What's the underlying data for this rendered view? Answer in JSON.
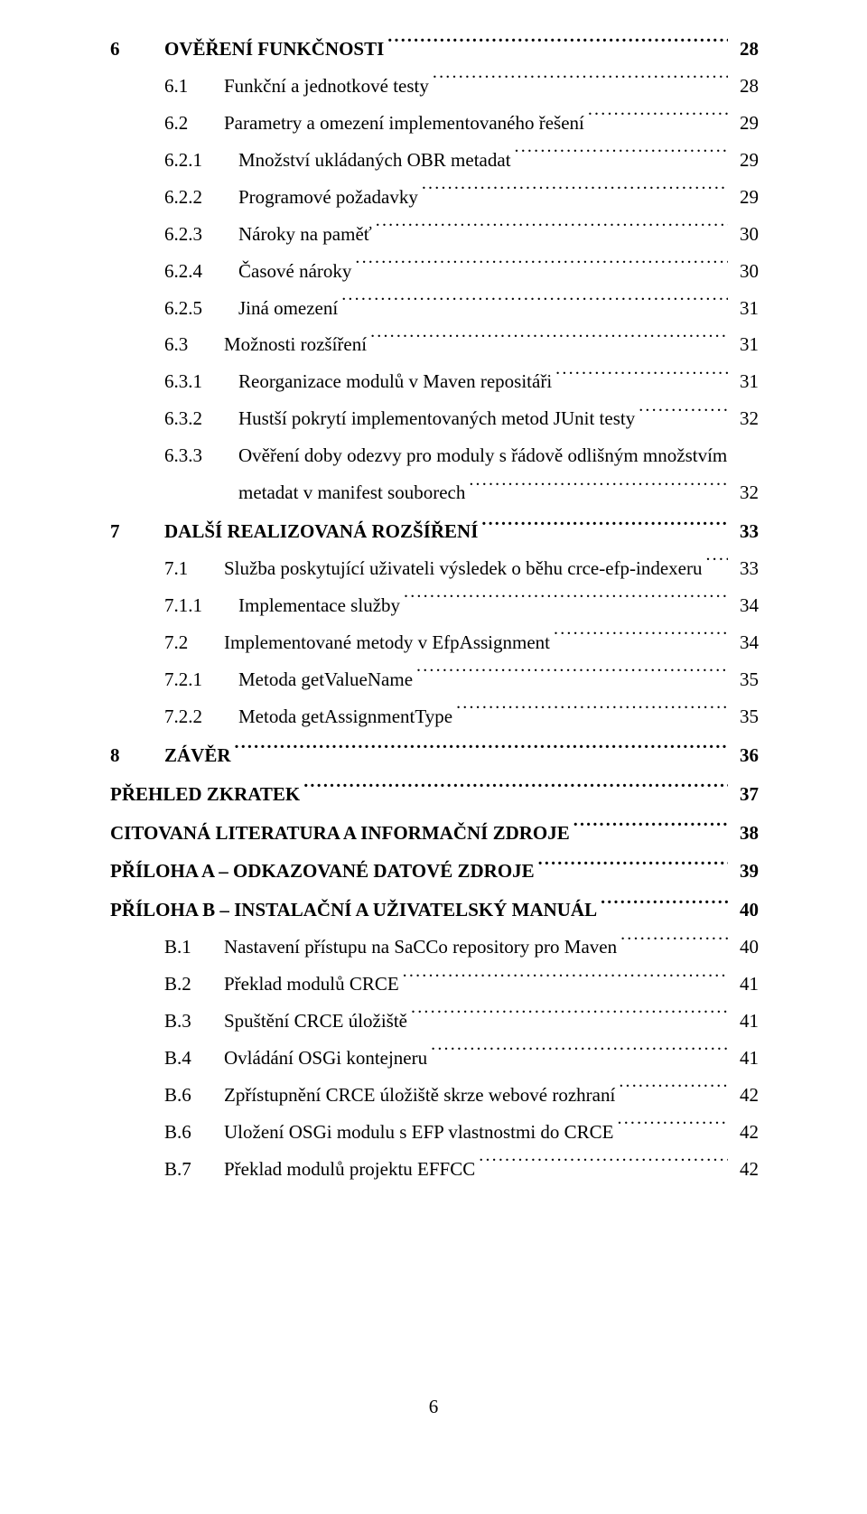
{
  "page_number_footer": "6",
  "entries": [
    {
      "level": "h1",
      "num": "6",
      "label": "OVĚŘENÍ FUNKČNOSTI",
      "sc": true,
      "page": "28"
    },
    {
      "level": "h2",
      "num": "6.1",
      "label": "Funkční a jednotkové testy",
      "page": "28"
    },
    {
      "level": "h2",
      "num": "6.2",
      "label": "Parametry a omezení implementovaného řešení",
      "page": "29"
    },
    {
      "level": "h3",
      "num": "6.2.1",
      "label": "Množství ukládaných OBR metadat",
      "page": "29"
    },
    {
      "level": "h3",
      "num": "6.2.2",
      "label": "Programové požadavky",
      "page": "29"
    },
    {
      "level": "h3",
      "num": "6.2.3",
      "label": "Nároky na paměť",
      "page": "30"
    },
    {
      "level": "h3",
      "num": "6.2.4",
      "label": "Časové nároky",
      "page": "30"
    },
    {
      "level": "h3",
      "num": "6.2.5",
      "label": "Jiná omezení",
      "page": "31"
    },
    {
      "level": "h2",
      "num": "6.3",
      "label": "Možnosti rozšíření",
      "page": "31"
    },
    {
      "level": "h3",
      "num": "6.3.1",
      "label": "Reorganizace modulů v Maven repositáři",
      "page": "31"
    },
    {
      "level": "h3",
      "num": "6.3.2",
      "label": "Hustší pokrytí implementovaných metod JUnit testy",
      "page": "32"
    },
    {
      "level": "h3",
      "num": "6.3.3",
      "label_lines": [
        "Ověření doby odezvy pro moduly s řádově odlišným množstvím",
        "metadat v manifest souborech"
      ],
      "page": "32"
    },
    {
      "level": "h1",
      "num": "7",
      "label": "DALŠÍ REALIZOVANÁ ROZŠÍŘENÍ",
      "sc": true,
      "page": "33"
    },
    {
      "level": "h2",
      "num": "7.1",
      "label": "Služba poskytující uživateli výsledek o běhu crce-efp-indexeru",
      "page": "33"
    },
    {
      "level": "h3",
      "num": "7.1.1",
      "label": "Implementace služby",
      "page": "34"
    },
    {
      "level": "h2",
      "num": "7.2",
      "label": "Implementované metody v EfpAssignment",
      "page": "34"
    },
    {
      "level": "h3",
      "num": "7.2.1",
      "label": "Metoda getValueName",
      "page": "35"
    },
    {
      "level": "h3",
      "num": "7.2.2",
      "label": "Metoda getAssignmentType",
      "page": "35"
    },
    {
      "level": "h1",
      "num": "8",
      "label": "ZÁVĚR",
      "sc": true,
      "page": "36"
    },
    {
      "level": "h1",
      "num": "",
      "label": "PŘEHLED ZKRATEK",
      "sc": true,
      "page": "37",
      "noprefix": true
    },
    {
      "level": "h1",
      "num": "",
      "label": "CITOVANÁ LITERATURA A INFORMAČNÍ ZDROJE",
      "sc": true,
      "page": "38",
      "noprefix": true
    },
    {
      "level": "h1",
      "num": "",
      "label": "PŘÍLOHA A – ODKAZOVANÉ DATOVÉ ZDROJE",
      "sc": true,
      "page": "39",
      "noprefix": true
    },
    {
      "level": "h1",
      "num": "",
      "label": "PŘÍLOHA B – INSTALAČNÍ A UŽIVATELSKÝ MANUÁL",
      "sc": true,
      "page": "40",
      "noprefix": true
    },
    {
      "level": "h2",
      "num": "B.1",
      "label": "Nastavení přístupu na SaCCo repository pro Maven",
      "page": "40"
    },
    {
      "level": "h2",
      "num": "B.2",
      "label": "Překlad modulů CRCE",
      "page": "41"
    },
    {
      "level": "h2",
      "num": "B.3",
      "label": "Spuštění CRCE úložiště",
      "page": "41"
    },
    {
      "level": "h2",
      "num": "B.4",
      "label": "Ovládání OSGi kontejneru",
      "page": "41"
    },
    {
      "level": "h2",
      "num": "B.6",
      "label": "Zpřístupnění CRCE úložiště skrze webové rozhraní",
      "page": "42"
    },
    {
      "level": "h2",
      "num": "B.6",
      "label": "Uložení OSGi modulu s EFP vlastnostmi do CRCE",
      "page": "42"
    },
    {
      "level": "h2",
      "num": "B.7",
      "label": "Překlad modulů projektu EFFCC",
      "page": "42"
    }
  ]
}
